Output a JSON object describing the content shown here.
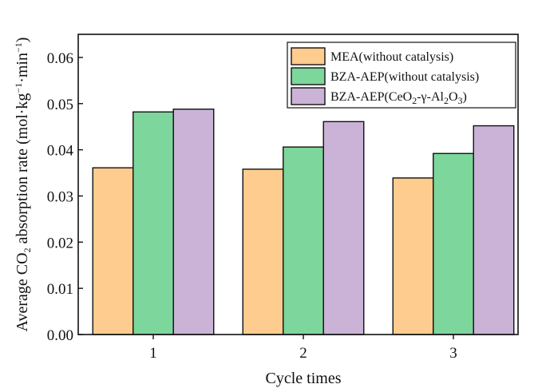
{
  "chart_data": {
    "type": "bar",
    "title": "",
    "categories": [
      "1",
      "2",
      "3"
    ],
    "xlabel": "Cycle times",
    "ylabel_parts": [
      "Average CO",
      "2",
      " absorption rate (mol·kg",
      "−1",
      "·min",
      "−1",
      ")"
    ],
    "ylim": [
      0,
      0.065
    ],
    "yticks": [
      "0.00",
      "0.01",
      "0.02",
      "0.03",
      "0.04",
      "0.05",
      "0.06"
    ],
    "ytick_values": [
      0,
      0.01,
      0.02,
      0.03,
      0.04,
      0.05,
      0.06
    ],
    "grid": false,
    "legend_placement": "top-right",
    "series": [
      {
        "name": "MEA(without catalysis)",
        "name_parts": [
          "MEA(without catalysis)"
        ],
        "color": "#FECC8E",
        "values": [
          0.0361,
          0.0358,
          0.0339
        ]
      },
      {
        "name": "BZA-AEP(without catalysis)",
        "name_parts": [
          "BZA-AEP(without catalysis)"
        ],
        "color": "#7DD69B",
        "values": [
          0.0482,
          0.0406,
          0.0392
        ]
      },
      {
        "name": "BZA-AEP(CeO2-γ-Al2O3)",
        "name_parts": [
          "BZA-AEP(CeO",
          "2",
          "-γ-Al",
          "2",
          "O",
          "3",
          ")"
        ],
        "color": "#CAB3D7",
        "values": [
          0.0488,
          0.0461,
          0.0452
        ]
      }
    ]
  }
}
